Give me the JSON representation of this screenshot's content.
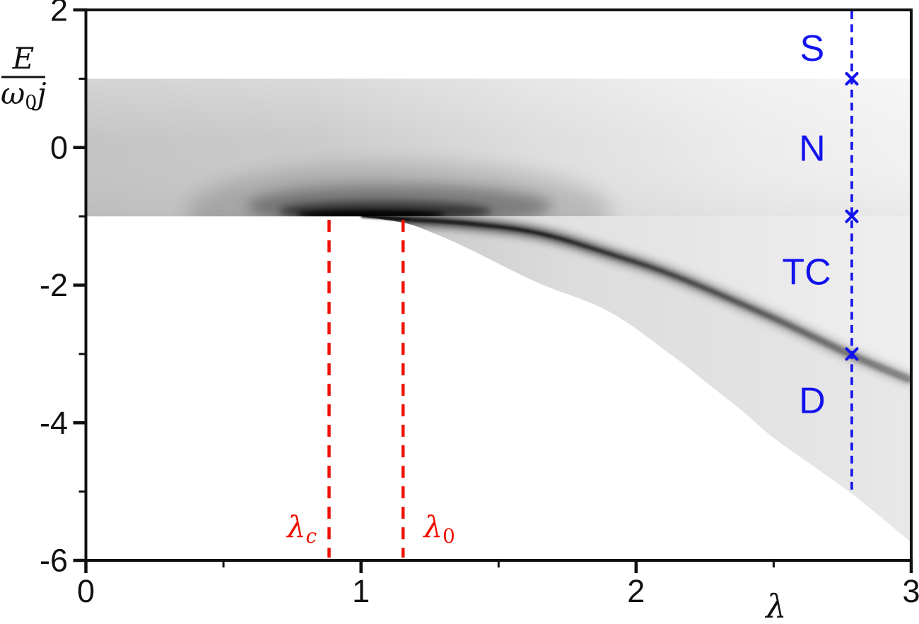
{
  "figure": {
    "background": "#ffffff",
    "description": "Spectral phase diagram: smoothed level density of a collective spin-boson model as a function of coupling strength lambda, with phase regions S, N, TC, D"
  },
  "chart_data": {
    "type": "heatmap",
    "title": "",
    "xlabel": "λ",
    "ylabel": {
      "numerator": "E",
      "den_omega": "ω",
      "den_sub": "0",
      "den_j": "j"
    },
    "xlim": [
      0,
      3
    ],
    "ylim": [
      -6,
      2
    ],
    "grid": false,
    "xticks": {
      "major": [
        0,
        1,
        2,
        3
      ],
      "labels": [
        "0",
        "1",
        "2",
        "3"
      ],
      "minor": [
        0.5,
        1.5,
        2.5
      ]
    },
    "yticks": {
      "major": [
        2,
        0,
        -2,
        -4,
        -6
      ],
      "labels": [
        "2",
        "0",
        "-2",
        "-4",
        "-6"
      ],
      "minor": [
        1,
        -1,
        -3,
        -5
      ]
    },
    "band": {
      "top_E": 1,
      "bottom_E": -1
    },
    "esqpt_curve": [
      [
        1.0,
        -1.0
      ],
      [
        1.15,
        -1.04
      ],
      [
        1.38,
        -1.1
      ],
      [
        1.64,
        -1.24
      ],
      [
        1.9,
        -1.54
      ],
      [
        2.15,
        -1.88
      ],
      [
        2.5,
        -2.48
      ],
      [
        2.78,
        -3.01
      ],
      [
        3.0,
        -3.38
      ]
    ],
    "ground_curve": [
      [
        1.02,
        -1.01
      ],
      [
        1.15,
        -1.09
      ],
      [
        1.23,
        -1.19
      ],
      [
        1.38,
        -1.45
      ],
      [
        1.64,
        -1.96
      ],
      [
        1.9,
        -2.38
      ],
      [
        2.13,
        -3.02
      ],
      [
        2.26,
        -3.43
      ],
      [
        2.39,
        -3.84
      ],
      [
        2.51,
        -4.25
      ],
      [
        2.78,
        -5.02
      ],
      [
        3.0,
        -5.74
      ]
    ],
    "reference_lines": [
      {
        "id": "lambda_c",
        "base": "λ",
        "sub": "c",
        "sub_italic": true,
        "x": 0.884,
        "label_x": 0.785,
        "label_E": -5.66
      },
      {
        "id": "lambda_0",
        "base": "λ",
        "sub": "0",
        "sub_italic": false,
        "x": 1.153,
        "label_x": 1.285,
        "label_E": -5.66
      }
    ],
    "sample_line": {
      "x": 2.784,
      "top_E": 1.98,
      "bottom_E": -5.0,
      "markers_E": [
        1,
        -1,
        -3
      ]
    },
    "regions": [
      {
        "label": "S",
        "x": 2.64,
        "E": 1.45
      },
      {
        "label": "N",
        "x": 2.64,
        "E": 0.0
      },
      {
        "label": "TC",
        "x": 2.62,
        "E": -1.8
      },
      {
        "label": "D",
        "x": 2.64,
        "E": -3.67
      }
    ],
    "colors": {
      "axis": "#111111",
      "blue": "#1212ee",
      "red": "#ee1100",
      "band_left": "#c4c4c4",
      "band_mid": "#dedede",
      "band_right": "#f2f2f2",
      "tc_left": "#d2d2d2",
      "tc_right": "#efefef",
      "d_left": "#c8c8c8",
      "d_right": "#e8e8e8",
      "white": "#ffffff"
    }
  }
}
